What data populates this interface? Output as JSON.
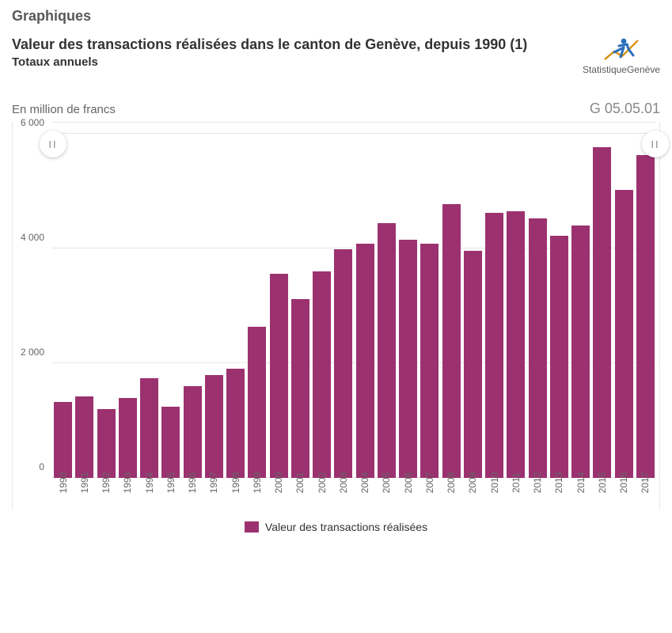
{
  "section_label": "Graphiques",
  "title": "Valeur des transactions réalisées dans le canton de Genève, depuis 1990 (1)",
  "subtitle": "Totaux annuels",
  "logo": {
    "text": "StatistiqueGenève",
    "icon_color": "#2a6ebb",
    "accent_color": "#d48a00"
  },
  "chart_code": "G 05.05.01",
  "chart": {
    "type": "bar",
    "y_axis_title": "En million de francs",
    "y_axis_title_color": "#666666",
    "ylim": [
      0,
      6200
    ],
    "yticks": [
      0,
      2000,
      4000,
      6000
    ],
    "ytick_labels": [
      "0",
      "2 000",
      "4 000",
      "6 000"
    ],
    "categories": [
      "1990",
      "1991",
      "1992",
      "1993",
      "1994",
      "1995",
      "1996",
      "1997",
      "1998",
      "1999",
      "2000",
      "2001",
      "2002",
      "2003",
      "2004",
      "2005",
      "2006",
      "2007",
      "2008",
      "2009",
      "2010",
      "2011",
      "2012",
      "2013",
      "2014",
      "2015",
      "2016",
      "2017"
    ],
    "values": [
      1320,
      1420,
      1200,
      1400,
      1740,
      1240,
      1600,
      1800,
      1900,
      2640,
      3560,
      3120,
      3600,
      3990,
      4090,
      4450,
      4150,
      4090,
      4780,
      3970,
      4620,
      4650,
      4530,
      4220,
      4410,
      5770,
      5020,
      5640
    ],
    "bar_color": "#9c3170",
    "grid_color": "#e6e6e6",
    "background_color": "#ffffff",
    "axis_font_size": 12,
    "axis_font_color": "#666666",
    "bar_width_ratio": 0.92,
    "handles": {
      "glyph": "II",
      "bg": "#ffffff"
    },
    "legend": {
      "label": "Valeur des transactions réalisées",
      "swatch_color": "#9c3170"
    }
  }
}
